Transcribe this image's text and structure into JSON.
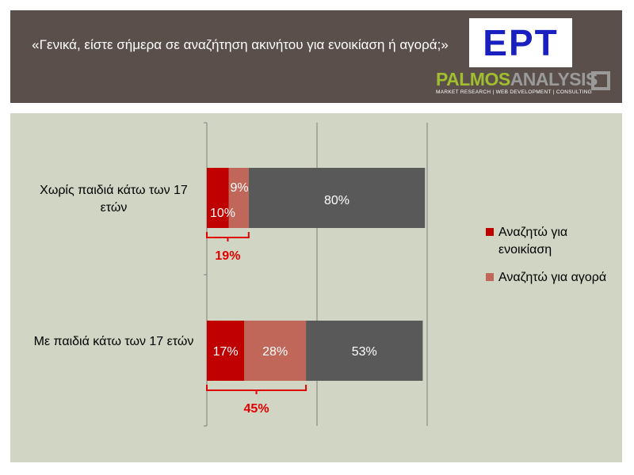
{
  "header": {
    "title": "«Γενικά, είστε σήμερα σε αναζήτηση ακινήτου για ενοικίαση ή αγορά;»",
    "logo_ert": "ΕΡΤ",
    "logo_palmos_part1": "PALMOS",
    "logo_palmos_part2": "ANALYSIS",
    "logo_palmos_sub": "MARKET RESEARCH | WEB DEVELOPMENT | CONSULTING"
  },
  "chart_data": {
    "type": "bar",
    "orientation": "horizontal",
    "stacked": true,
    "categories": [
      "Χωρίς παιδιά κάτω των 17 ετών",
      "Με παιδιά κάτω των 17 ετών"
    ],
    "series": [
      {
        "name": "Αναζητώ για ενοικίαση",
        "values": [
          10,
          17
        ],
        "labels": [
          "10%",
          "17%"
        ],
        "color": "#c00000"
      },
      {
        "name": "Αναζητώ για αγορά",
        "values": [
          9,
          28
        ],
        "labels": [
          "9%",
          "28%"
        ],
        "color": "#c0675a"
      },
      {
        "values": [
          80,
          53
        ],
        "labels": [
          "80%",
          "53%"
        ],
        "color": "#595959"
      }
    ],
    "bracket_totals": [
      "19%",
      "45%"
    ],
    "xlim": [
      0,
      100
    ],
    "grid": true,
    "legend_position": "right",
    "colors": {
      "panel": "#d1d5c3",
      "bracket": "#e00000",
      "grid": "#808080"
    }
  }
}
